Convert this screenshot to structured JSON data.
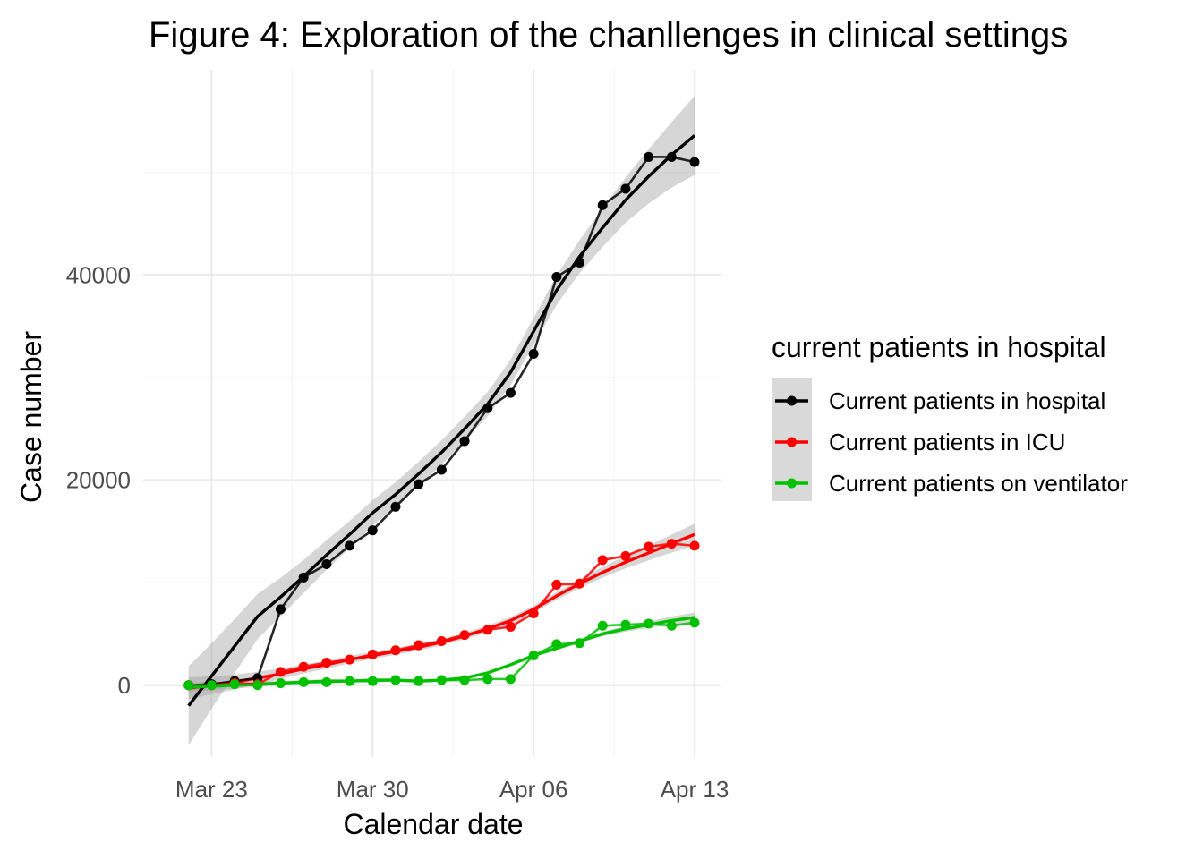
{
  "chart_data": {
    "type": "line",
    "title": "Figure 4: Exploration of the chanllenges in clinical settings",
    "xlabel": "Calendar date",
    "ylabel": "Case number",
    "xlim": [
      "2020-03-21",
      "2020-04-13"
    ],
    "ylim": [
      -7000,
      60000
    ],
    "x_ticks": [
      "2020-03-23",
      "2020-03-30",
      "2020-04-06",
      "2020-04-13"
    ],
    "x_tick_labels": [
      "Mar 23",
      "Mar 30",
      "Apr 06",
      "Apr 13"
    ],
    "y_ticks": [
      0,
      20000,
      40000
    ],
    "y_tick_labels": [
      "0",
      "20000",
      "40000"
    ],
    "grid": true,
    "legend": {
      "title": "current patients in hospital",
      "position": "right"
    },
    "x": [
      "2020-03-22",
      "2020-03-23",
      "2020-03-24",
      "2020-03-25",
      "2020-03-26",
      "2020-03-27",
      "2020-03-28",
      "2020-03-29",
      "2020-03-30",
      "2020-03-31",
      "2020-04-01",
      "2020-04-02",
      "2020-04-03",
      "2020-04-04",
      "2020-04-05",
      "2020-04-06",
      "2020-04-07",
      "2020-04-08",
      "2020-04-09",
      "2020-04-10",
      "2020-04-11",
      "2020-04-12",
      "2020-04-13"
    ],
    "series": [
      {
        "name": "Current patients in hospital",
        "color": "#000000",
        "values": [
          0,
          100,
          400,
          700,
          7400,
          10500,
          11800,
          13600,
          15100,
          17400,
          19600,
          21000,
          23800,
          27000,
          28500,
          32300,
          39800,
          41200,
          46800,
          48400,
          51500,
          51500,
          51000
        ],
        "smooth": [
          -2000,
          900,
          3800,
          6700,
          8600,
          10600,
          12700,
          14700,
          16800,
          18600,
          20600,
          22700,
          25000,
          27400,
          30500,
          34500,
          38500,
          41800,
          44600,
          47300,
          49600,
          51700,
          53600
        ]
      },
      {
        "name": "Current patients in ICU",
        "color": "#ff0000",
        "values": [
          0,
          0,
          200,
          100,
          1300,
          1800,
          2200,
          2500,
          3000,
          3400,
          3900,
          4300,
          4900,
          5400,
          5700,
          7000,
          9800,
          9900,
          12200,
          12600,
          13500,
          13800,
          13600
        ],
        "smooth": [
          -300,
          0,
          300,
          700,
          1100,
          1600,
          2000,
          2500,
          2900,
          3300,
          3700,
          4200,
          4800,
          5500,
          6300,
          7400,
          8700,
          9900,
          11000,
          12000,
          12900,
          13800,
          14700
        ]
      },
      {
        "name": "Current patients on ventilator",
        "color": "#00c000",
        "values": [
          0,
          0,
          100,
          0,
          200,
          300,
          300,
          400,
          400,
          500,
          400,
          500,
          500,
          600,
          600,
          2900,
          4000,
          4100,
          5800,
          5900,
          6000,
          5800,
          6100
        ],
        "smooth": [
          -200,
          -100,
          0,
          100,
          200,
          300,
          400,
          400,
          500,
          500,
          400,
          500,
          700,
          1200,
          2000,
          2900,
          3600,
          4300,
          5000,
          5500,
          5900,
          6300,
          6600
        ]
      }
    ]
  }
}
